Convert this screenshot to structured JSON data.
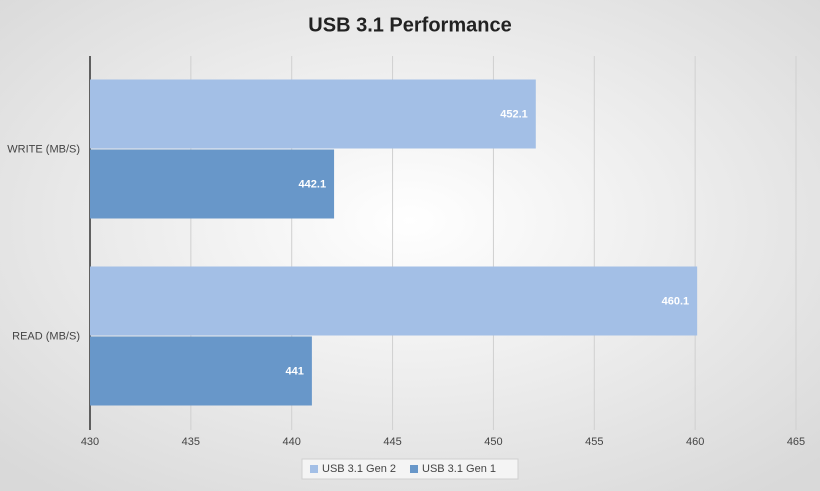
{
  "chart_data": {
    "type": "hbar",
    "title": "USB 3.1 Performance",
    "categories": [
      "WRITE (MB/S)",
      "READ (MB/S)"
    ],
    "series": [
      {
        "name": "USB 3.1 Gen 2",
        "color": "#a3bfe6",
        "values": [
          452.1,
          460.1
        ]
      },
      {
        "name": "USB 3.1 Gen 1",
        "color": "#6897c9",
        "values": [
          442.1,
          441
        ]
      }
    ],
    "xlim": [
      430,
      465
    ],
    "xticks": [
      430,
      435,
      440,
      445,
      450,
      455,
      460,
      465
    ],
    "grid": true,
    "legend": "bottom"
  }
}
